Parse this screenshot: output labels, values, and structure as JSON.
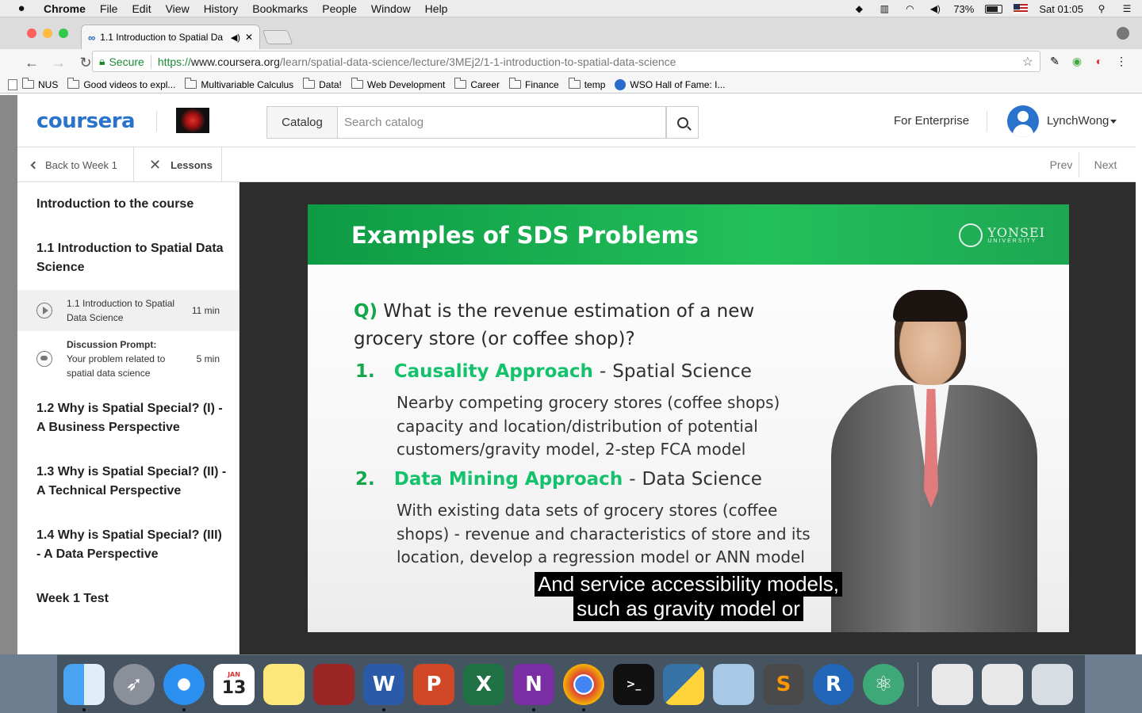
{
  "menubar": {
    "apple": "",
    "app_name": "Chrome",
    "menus": [
      "File",
      "Edit",
      "View",
      "History",
      "Bookmarks",
      "People",
      "Window",
      "Help"
    ],
    "battery": "73%",
    "clock": "Sat 01:05"
  },
  "browser": {
    "tab_title": "1.1 Introduction to Spatial Da",
    "url_secure_label": "Secure",
    "url_scheme": "https://",
    "url_domain": "www.coursera.org",
    "url_path": "/learn/spatial-data-science/lecture/3MEj2/1-1-introduction-to-spatial-data-science",
    "bookmarks": [
      "NUS",
      "Good videos to expl...",
      "Multivariable Calculus",
      "Data!",
      "Web Development",
      "Career",
      "Finance",
      "temp",
      "WSO Hall of Fame: I..."
    ]
  },
  "header": {
    "logo": "coursera",
    "catalog_label": "Catalog",
    "search_placeholder": "Search catalog",
    "enterprise_label": "For Enterprise",
    "username": "LynchWong"
  },
  "subnav": {
    "back_label": "Back to Week 1",
    "lessons_label": "Lessons",
    "prev_label": "Prev",
    "next_label": "Next"
  },
  "sidebar": {
    "intro": "Introduction to the course",
    "section_1": "1.1 Introduction to Spatial Data Science",
    "lessons": [
      {
        "title": "1.1 Introduction to Spatial Data Science",
        "duration": "11 min"
      },
      {
        "title_bold": "Discussion Prompt:",
        "title": "Your problem related to spatial data science",
        "duration": "5 min"
      }
    ],
    "section_2": "1.2 Why is Spatial Special? (I) - A Business Perspective",
    "section_3": "1.3 Why is Spatial Special? (II) - A Technical Perspective",
    "section_4": "1.4 Why is Spatial Special? (III) - A Data Perspective",
    "test": "Week 1 Test"
  },
  "slide": {
    "title": "Examples of SDS Problems",
    "university_name": "YONSEI",
    "university_sub": "UNIVERSITY",
    "q_label": "Q)",
    "question": "What is the revenue estimation of a new grocery store (or coffee shop)?",
    "approach_1_num": "1.",
    "approach_1_name": "Causality Approach",
    "approach_1_dash": "-",
    "approach_1_field": "Spatial Science",
    "approach_1_detail": "Nearby competing grocery stores (coffee shops) capacity and location/distribution of potential customers/gravity model, 2-step FCA model",
    "approach_2_num": "2.",
    "approach_2_name": "Data Mining Approach",
    "approach_2_dash": "-",
    "approach_2_field": "Data Science",
    "approach_2_detail": "With existing data sets of grocery stores (coffee shops) - revenue and characteristics of store and its location, develop a regression model or ANN model"
  },
  "captions": {
    "line_1": "And service accessibility models,",
    "line_2": "such as gravity model or"
  },
  "dock": {
    "apps": [
      "finder",
      "launchpad",
      "safari",
      "calendar",
      "notes",
      "photo-booth",
      "word",
      "powerpoint",
      "excel",
      "onenote",
      "chrome",
      "terminal",
      "python",
      "preview",
      "sublime-text",
      "r",
      "atom"
    ],
    "calendar_month": "JAN",
    "calendar_day": "13"
  }
}
